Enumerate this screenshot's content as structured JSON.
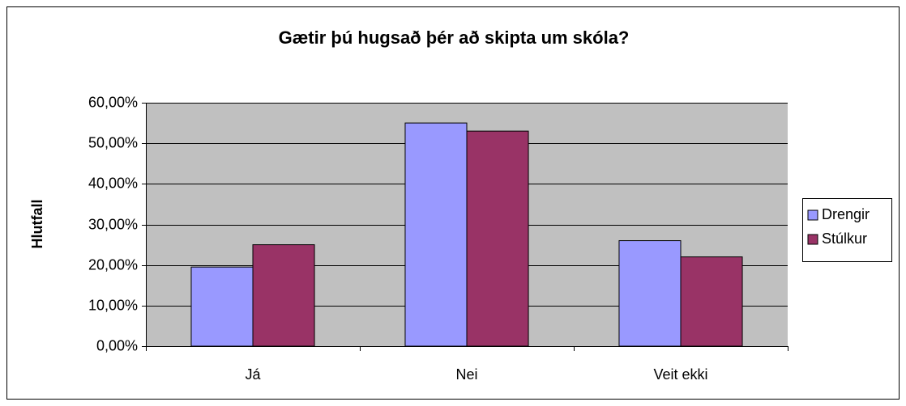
{
  "chart_data": {
    "type": "bar",
    "title": "Gætir þú hugsað þér að skipta um skóla?",
    "y_label": "Hlutfall",
    "categories": [
      "Já",
      "Nei",
      "Veit ekki"
    ],
    "series": [
      {
        "name": "Drengir",
        "color": "#9999ff",
        "values": [
          19.5,
          55,
          26
        ]
      },
      {
        "name": "Stúlkur",
        "color": "#993366",
        "values": [
          25,
          53,
          22
        ]
      }
    ],
    "ylim": [
      0,
      60
    ],
    "yticks": [
      {
        "value": 0,
        "label": "0,00%"
      },
      {
        "value": 10,
        "label": "10,00%"
      },
      {
        "value": 20,
        "label": "20,00%"
      },
      {
        "value": 30,
        "label": "30,00%"
      },
      {
        "value": 40,
        "label": "40,00%"
      },
      {
        "value": 50,
        "label": "50,00%"
      },
      {
        "value": 60,
        "label": "60,00%"
      }
    ],
    "grid": true,
    "legend": "right"
  }
}
